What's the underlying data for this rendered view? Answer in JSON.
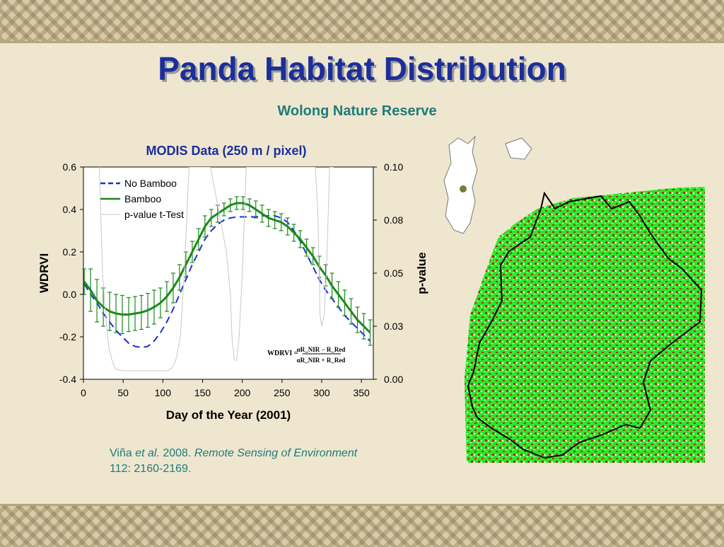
{
  "slide": {
    "title": "Panda Habitat Distribution",
    "subtitle": "Wolong Nature Reserve",
    "colors": {
      "title": "#1b2f9b",
      "subtitle": "#1d7c7a",
      "background": "#efe6cf"
    }
  },
  "citation": {
    "author": "Viña ",
    "etal": "et al.",
    "year": " 2008. ",
    "journal": "Remote Sensing of Environment",
    "volume": " 112: 2160-2169."
  },
  "chart_data": {
    "type": "line",
    "title": "MODIS Data (250 m / pixel)",
    "xlabel": "Day of the Year (2001)",
    "ylabel": "WDRVI",
    "y2label": "p-value",
    "xlim": [
      0,
      365
    ],
    "ylim": [
      -0.4,
      0.6
    ],
    "y2lim": [
      0.0,
      0.1
    ],
    "x_ticks": [
      0,
      50,
      100,
      150,
      200,
      250,
      300,
      350
    ],
    "y_ticks": [
      "0.6",
      "0.4",
      "0.2",
      "0.0",
      "-0.2",
      "-0.4"
    ],
    "y2_ticks": [
      "0.10",
      "0.08",
      "0.05",
      "0.03",
      "0.00"
    ],
    "legend_position": "top-left",
    "formula": {
      "lhs": "WDRVI =",
      "num": "αR_NIR − R_Red",
      "den": "αR_NIR + R_Red"
    },
    "series": [
      {
        "name": "No Bamboo",
        "color": "#1f2fd6",
        "style": "dashed",
        "axis": "left",
        "x": [
          1,
          9,
          17,
          25,
          33,
          41,
          49,
          57,
          65,
          73,
          81,
          89,
          97,
          105,
          113,
          121,
          129,
          137,
          145,
          153,
          161,
          169,
          177,
          185,
          193,
          201,
          209,
          217,
          225,
          233,
          241,
          249,
          257,
          265,
          273,
          281,
          289,
          297,
          305,
          313,
          321,
          329,
          337,
          345,
          353,
          361
        ],
        "values": [
          0.05,
          0.0,
          -0.04,
          -0.09,
          -0.13,
          -0.17,
          -0.2,
          -0.23,
          -0.245,
          -0.25,
          -0.245,
          -0.22,
          -0.18,
          -0.13,
          -0.07,
          0.0,
          0.07,
          0.14,
          0.2,
          0.26,
          0.3,
          0.33,
          0.35,
          0.36,
          0.365,
          0.365,
          0.365,
          0.365,
          0.37,
          0.37,
          0.37,
          0.36,
          0.34,
          0.3,
          0.25,
          0.19,
          0.13,
          0.07,
          0.02,
          -0.02,
          -0.06,
          -0.1,
          -0.13,
          -0.16,
          -0.19,
          -0.22
        ]
      },
      {
        "name": "Bamboo",
        "color": "#1a8a1a",
        "style": "solid",
        "axis": "left",
        "x": [
          1,
          9,
          17,
          25,
          33,
          41,
          49,
          57,
          65,
          73,
          81,
          89,
          97,
          105,
          113,
          121,
          129,
          137,
          145,
          153,
          161,
          169,
          177,
          185,
          193,
          201,
          209,
          217,
          225,
          233,
          241,
          249,
          257,
          265,
          273,
          281,
          289,
          297,
          305,
          313,
          321,
          329,
          337,
          345,
          353,
          361
        ],
        "values": [
          0.06,
          0.02,
          -0.03,
          -0.06,
          -0.08,
          -0.09,
          -0.095,
          -0.095,
          -0.09,
          -0.085,
          -0.075,
          -0.06,
          -0.04,
          -0.01,
          0.03,
          0.08,
          0.14,
          0.2,
          0.26,
          0.32,
          0.36,
          0.38,
          0.4,
          0.42,
          0.43,
          0.43,
          0.42,
          0.4,
          0.38,
          0.36,
          0.35,
          0.34,
          0.32,
          0.29,
          0.26,
          0.22,
          0.18,
          0.13,
          0.09,
          0.04,
          0.0,
          -0.04,
          -0.08,
          -0.12,
          -0.15,
          -0.18
        ],
        "errors": [
          0.06,
          0.1,
          0.1,
          0.09,
          0.09,
          0.09,
          0.09,
          0.08,
          0.08,
          0.08,
          0.08,
          0.08,
          0.07,
          0.07,
          0.07,
          0.06,
          0.06,
          0.05,
          0.05,
          0.05,
          0.04,
          0.04,
          0.03,
          0.03,
          0.03,
          0.03,
          0.03,
          0.04,
          0.04,
          0.04,
          0.04,
          0.04,
          0.04,
          0.04,
          0.04,
          0.04,
          0.04,
          0.05,
          0.05,
          0.06,
          0.06,
          0.06,
          0.06,
          0.06,
          0.06,
          0.06
        ]
      },
      {
        "name": "p-value t-Test",
        "color": "#c8c8c8",
        "style": "solid",
        "axis": "right",
        "x": [
          20,
          24,
          28,
          32,
          36,
          40,
          50,
          60,
          70,
          80,
          90,
          100,
          106,
          110,
          113,
          117,
          122,
          127,
          133,
          140,
          146,
          150,
          154,
          160,
          170,
          180,
          185,
          187,
          190,
          193,
          196,
          200,
          205,
          210,
          220,
          240,
          260,
          280,
          292,
          295,
          298,
          300,
          303,
          306,
          310,
          315
        ],
        "values": [
          0.1,
          0.05,
          0.03,
          0.015,
          0.009,
          0.005,
          0.004,
          0.004,
          0.004,
          0.004,
          0.004,
          0.004,
          0.004,
          0.005,
          0.006,
          0.01,
          0.02,
          0.05,
          0.1,
          0.1,
          0.1,
          0.1,
          0.1,
          0.1,
          0.08,
          0.06,
          0.04,
          0.02,
          0.009,
          0.009,
          0.02,
          0.05,
          0.1,
          0.1,
          0.1,
          0.1,
          0.1,
          0.1,
          0.1,
          0.08,
          0.03,
          0.025,
          0.03,
          0.05,
          0.1,
          0.1
        ]
      }
    ]
  }
}
